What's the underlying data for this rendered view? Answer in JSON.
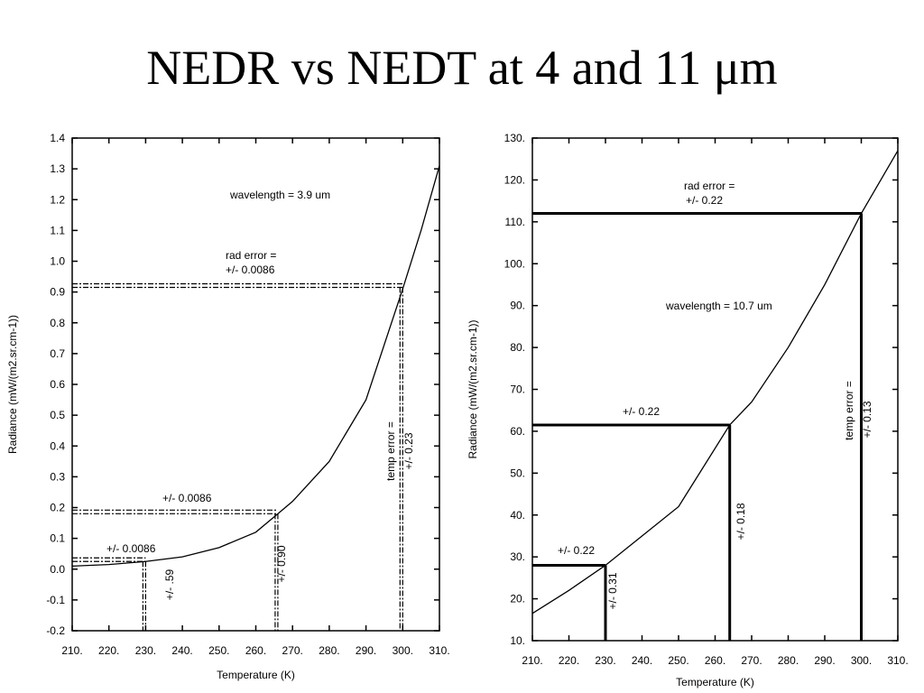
{
  "title": "NEDR vs NEDT at 4 and 11 μm",
  "chart_data": [
    {
      "type": "line",
      "xlabel": "Temperature (K)",
      "ylabel": "Radiance (mW/(m2.sr.cm-1))",
      "x": [
        210,
        220,
        230,
        240,
        250,
        260,
        266,
        270,
        280,
        290,
        300,
        305,
        310
      ],
      "series": [
        {
          "color": "#000000",
          "values": [
            0.01,
            0.015,
            0.025,
            0.04,
            0.07,
            0.12,
            0.18,
            0.22,
            0.35,
            0.55,
            0.91,
            1.1,
            1.31
          ]
        }
      ],
      "xlim": [
        210,
        310
      ],
      "ylim": [
        -0.2,
        1.4
      ],
      "xticks": [
        {
          "value": 210,
          "label": "210."
        },
        {
          "value": 220,
          "label": "220."
        },
        {
          "value": 230,
          "label": "230."
        },
        {
          "value": 240,
          "label": "240."
        },
        {
          "value": 250,
          "label": "250."
        },
        {
          "value": 260,
          "label": "260."
        },
        {
          "value": 270,
          "label": "270."
        },
        {
          "value": 280,
          "label": "280."
        },
        {
          "value": 290,
          "label": "290."
        },
        {
          "value": 300,
          "label": "300."
        },
        {
          "value": 310,
          "label": "310."
        }
      ],
      "yticks": [
        -0.2,
        -0.1,
        {
          "value": 0,
          "label": "0.0"
        },
        0.1,
        0.2,
        0.3,
        0.4,
        0.5,
        0.6,
        0.7,
        0.8,
        0.9,
        {
          "value": 1,
          "label": "1.0"
        },
        1.1,
        1.2,
        1.3,
        1.4
      ],
      "guide_style": "dashed",
      "guides": [
        {
          "x": 300,
          "y": 0.915
        },
        {
          "x": 266,
          "y": 0.18
        },
        {
          "x": 230,
          "y": 0.025
        }
      ],
      "annotations": [
        "wavelength =   3.9 um",
        "rad error =",
        "+/- 0.0086",
        "+/- 0.0086",
        "+/- 0.0086",
        "temp error =",
        "+/- 0.23",
        "+/- 0.90",
        "+/- .59"
      ]
    },
    {
      "type": "line",
      "xlabel": "Temperature (K)",
      "ylabel": "Radiance (mW/(m2.sr.cm-1))",
      "x": [
        210,
        220,
        230,
        240,
        250,
        264,
        270,
        280,
        290,
        300,
        310
      ],
      "series": [
        {
          "color": "#000000",
          "values": [
            16.5,
            22,
            28,
            35,
            42,
            61.5,
            67,
            80,
            95,
            112,
            127
          ]
        }
      ],
      "xlim": [
        210,
        310
      ],
      "ylim": [
        10,
        130
      ],
      "xticks": [
        {
          "value": 210,
          "label": "210."
        },
        {
          "value": 220,
          "label": "220."
        },
        {
          "value": 230,
          "label": "230."
        },
        {
          "value": 240,
          "label": "240."
        },
        {
          "value": 250,
          "label": "250."
        },
        {
          "value": 260,
          "label": "260."
        },
        {
          "value": 270,
          "label": "270."
        },
        {
          "value": 280,
          "label": "280."
        },
        {
          "value": 290,
          "label": "290."
        },
        {
          "value": 300,
          "label": "300."
        },
        {
          "value": 310,
          "label": "310."
        }
      ],
      "yticks": [
        {
          "value": 10,
          "label": "10."
        },
        {
          "value": 20,
          "label": "20."
        },
        {
          "value": 30,
          "label": "30."
        },
        {
          "value": 40,
          "label": "40."
        },
        {
          "value": 50,
          "label": "50."
        },
        {
          "value": 60,
          "label": "60."
        },
        {
          "value": 70,
          "label": "70."
        },
        {
          "value": 80,
          "label": "80."
        },
        {
          "value": 90,
          "label": "90."
        },
        {
          "value": 100,
          "label": "100."
        },
        {
          "value": 110,
          "label": "110."
        },
        {
          "value": 120,
          "label": "120."
        },
        {
          "value": 130,
          "label": "130."
        }
      ],
      "guide_style": "solid",
      "guides": [
        {
          "x": 300,
          "y": 112
        },
        {
          "x": 264,
          "y": 61.5
        },
        {
          "x": 230,
          "y": 28
        }
      ],
      "annotations": [
        "rad error =",
        "+/- 0.22",
        "wavelength =  10.7 um",
        "+/- 0.22",
        "+/- 0.22",
        "temp error =",
        "+/- 0.13",
        "+/- 0.18",
        "+/- 0.31"
      ]
    }
  ]
}
